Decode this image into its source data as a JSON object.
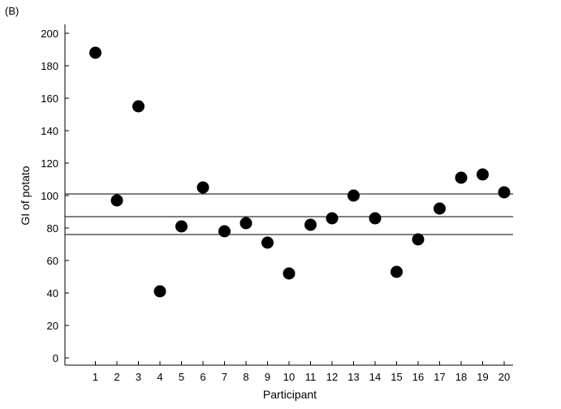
{
  "panel_label": "(B)",
  "chart_data": {
    "type": "scatter",
    "xlabel": "Participant",
    "ylabel": "GI of potato",
    "xlim": [
      0,
      20.5
    ],
    "ylim": [
      -5,
      205
    ],
    "x_ticks": [
      1,
      2,
      3,
      4,
      5,
      6,
      7,
      8,
      9,
      10,
      11,
      12,
      13,
      14,
      15,
      16,
      17,
      18,
      19,
      20
    ],
    "y_ticks": [
      0,
      20,
      40,
      60,
      80,
      100,
      120,
      140,
      160,
      180,
      200
    ],
    "grid": false,
    "legend": "none",
    "marker_color": "#000000",
    "reference_lines": [
      101,
      87,
      76
    ],
    "points": [
      {
        "x": 1,
        "y": 188
      },
      {
        "x": 2,
        "y": 97
      },
      {
        "x": 3,
        "y": 155
      },
      {
        "x": 4,
        "y": 41
      },
      {
        "x": 5,
        "y": 81
      },
      {
        "x": 6,
        "y": 105
      },
      {
        "x": 7,
        "y": 78
      },
      {
        "x": 8,
        "y": 83
      },
      {
        "x": 9,
        "y": 71
      },
      {
        "x": 10,
        "y": 52
      },
      {
        "x": 11,
        "y": 82
      },
      {
        "x": 12,
        "y": 86
      },
      {
        "x": 13,
        "y": 100
      },
      {
        "x": 14,
        "y": 86
      },
      {
        "x": 15,
        "y": 53
      },
      {
        "x": 16,
        "y": 73
      },
      {
        "x": 17,
        "y": 92
      },
      {
        "x": 18,
        "y": 111
      },
      {
        "x": 19,
        "y": 113
      },
      {
        "x": 20,
        "y": 102
      }
    ]
  }
}
